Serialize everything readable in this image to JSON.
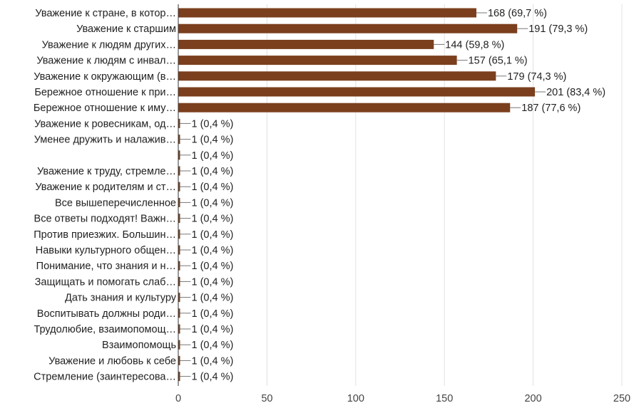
{
  "chart_data": {
    "type": "bar",
    "orientation": "horizontal",
    "categories": [
      "Уважение к стране, в котор…",
      "Уважение к старшим",
      "Уважение к людям других…",
      "Уважение к людям с инвал…",
      "Уважение к окружающим (в…",
      "Бережное отношение к при…",
      "Бережное отношение к иму…",
      "Уважение к ровесникам, од…",
      "Уменее дружить и налажив…",
      "",
      "Уважение к труду, стремле…",
      "Уважение к родителям и ст…",
      "Все вышеперечисленное",
      "Все ответы подходят! Важн…",
      "Против приезжих. Большин…",
      "Навыки культурного общен…",
      "Понимание, что знания и н…",
      "Защищать и помогать слаб…",
      "Дать знания и культуру",
      "Воспитывать должны роди…",
      "Трудолюбие, взаимопомощ…",
      "Взаимопомощь",
      "Уважение и любовь к себе",
      "Стремление (заинтересова…"
    ],
    "values": [
      168,
      191,
      144,
      157,
      179,
      201,
      187,
      1,
      1,
      1,
      1,
      1,
      1,
      1,
      1,
      1,
      1,
      1,
      1,
      1,
      1,
      1,
      1,
      1
    ],
    "value_labels": [
      "168 (69,7 %)",
      "191 (79,3 %)",
      "144 (59,8 %)",
      "157 (65,1 %)",
      "179 (74,3 %)",
      "201 (83,4 %)",
      "187 (77,6 %)",
      "1 (0,4 %)",
      "1 (0,4 %)",
      "1 (0,4 %)",
      "1 (0,4 %)",
      "1 (0,4 %)",
      "1 (0,4 %)",
      "1 (0,4 %)",
      "1 (0,4 %)",
      "1 (0,4 %)",
      "1 (0,4 %)",
      "1 (0,4 %)",
      "1 (0,4 %)",
      "1 (0,4 %)",
      "1 (0,4 %)",
      "1 (0,4 %)",
      "1 (0,4 %)",
      "1 (0,4 %)"
    ],
    "xlim": [
      0,
      250
    ],
    "xticks": [
      "0",
      "50",
      "100",
      "150",
      "200",
      "250"
    ],
    "xtick_values": [
      0,
      50,
      100,
      150,
      200,
      250
    ],
    "grid": true,
    "legend": "none",
    "bar_color": "#7b3f1e"
  }
}
